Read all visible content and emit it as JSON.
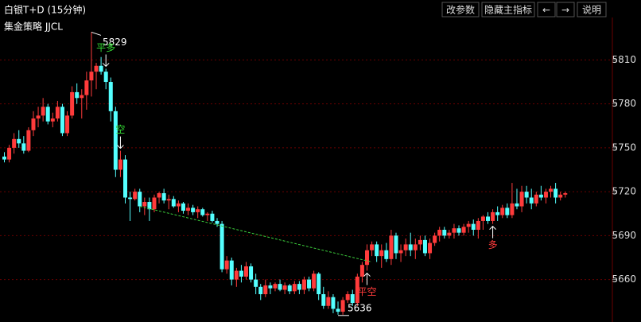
{
  "toolbar": {
    "title": "白银T+D (15分钟)",
    "buttons": [
      "改参数",
      "隐藏主指标",
      "←",
      "→",
      "说明"
    ]
  },
  "chart_data": {
    "type": "candlestick",
    "title": "集金策略 JJCL",
    "up_color": "#ff3b3b",
    "down_color": "#54ffff",
    "grid": true,
    "grid_color": "#6a0000",
    "ylim": [
      5631,
      5839
    ],
    "yticks": [
      5660,
      5690,
      5720,
      5750,
      5780,
      5810
    ],
    "ohlc": [
      [
        5744,
        5747,
        5740,
        5742
      ],
      [
        5742,
        5752,
        5740,
        5750
      ],
      [
        5750,
        5760,
        5746,
        5756
      ],
      [
        5756,
        5762,
        5750,
        5753
      ],
      [
        5753,
        5758,
        5746,
        5748
      ],
      [
        5748,
        5764,
        5747,
        5762
      ],
      [
        5762,
        5775,
        5758,
        5770
      ],
      [
        5770,
        5778,
        5764,
        5772
      ],
      [
        5772,
        5784,
        5768,
        5778
      ],
      [
        5778,
        5780,
        5766,
        5768
      ],
      [
        5768,
        5774,
        5764,
        5770
      ],
      [
        5770,
        5782,
        5768,
        5778
      ],
      [
        5778,
        5780,
        5758,
        5760
      ],
      [
        5760,
        5775,
        5758,
        5772
      ],
      [
        5772,
        5792,
        5770,
        5788
      ],
      [
        5788,
        5794,
        5780,
        5784
      ],
      [
        5784,
        5790,
        5770,
        5786
      ],
      [
        5786,
        5802,
        5776,
        5796
      ],
      [
        5796,
        5829,
        5785,
        5802
      ],
      [
        5802,
        5808,
        5790,
        5806
      ],
      [
        5806,
        5812,
        5800,
        5802
      ],
      [
        5802,
        5804,
        5790,
        5795
      ],
      [
        5795,
        5798,
        5768,
        5775
      ],
      [
        5775,
        5778,
        5730,
        5735
      ],
      [
        5735,
        5748,
        5730,
        5742
      ],
      [
        5742,
        5745,
        5712,
        5716
      ],
      [
        5716,
        5720,
        5700,
        5715
      ],
      [
        5715,
        5722,
        5714,
        5720
      ],
      [
        5720,
        5722,
        5706,
        5710
      ],
      [
        5710,
        5716,
        5704,
        5713
      ],
      [
        5713,
        5716,
        5700,
        5708
      ],
      [
        5708,
        5718,
        5706,
        5716
      ],
      [
        5716,
        5720,
        5712,
        5719
      ],
      [
        5719,
        5722,
        5712,
        5714
      ],
      [
        5714,
        5718,
        5708,
        5715
      ],
      [
        5715,
        5717,
        5709,
        5710
      ],
      [
        5710,
        5714,
        5706,
        5712
      ],
      [
        5712,
        5713,
        5705,
        5707
      ],
      [
        5707,
        5712,
        5704,
        5709
      ],
      [
        5709,
        5711,
        5704,
        5706
      ],
      [
        5706,
        5710,
        5702,
        5708
      ],
      [
        5708,
        5709,
        5703,
        5704
      ],
      [
        5704,
        5706,
        5700,
        5705
      ],
      [
        5705,
        5707,
        5699,
        5700
      ],
      [
        5700,
        5702,
        5696,
        5698
      ],
      [
        5698,
        5700,
        5665,
        5667
      ],
      [
        5667,
        5676,
        5664,
        5673
      ],
      [
        5673,
        5675,
        5656,
        5660
      ],
      [
        5660,
        5668,
        5655,
        5666
      ],
      [
        5666,
        5670,
        5658,
        5662
      ],
      [
        5662,
        5672,
        5660,
        5669
      ],
      [
        5669,
        5671,
        5658,
        5660
      ],
      [
        5660,
        5664,
        5650,
        5655
      ],
      [
        5655,
        5657,
        5646,
        5650
      ],
      [
        5650,
        5660,
        5648,
        5656
      ],
      [
        5656,
        5658,
        5650,
        5654
      ],
      [
        5654,
        5658,
        5652,
        5657
      ],
      [
        5657,
        5660,
        5652,
        5653
      ],
      [
        5653,
        5658,
        5650,
        5656
      ],
      [
        5656,
        5657,
        5650,
        5652
      ],
      [
        5652,
        5659,
        5650,
        5657
      ],
      [
        5657,
        5659,
        5650,
        5653
      ],
      [
        5653,
        5662,
        5650,
        5660
      ],
      [
        5660,
        5662,
        5652,
        5654
      ],
      [
        5654,
        5666,
        5652,
        5664
      ],
      [
        5664,
        5665,
        5646,
        5650
      ],
      [
        5650,
        5655,
        5640,
        5642
      ],
      [
        5642,
        5652,
        5640,
        5648
      ],
      [
        5648,
        5650,
        5637,
        5640
      ],
      [
        5640,
        5645,
        5636,
        5638
      ],
      [
        5638,
        5648,
        5636,
        5646
      ],
      [
        5646,
        5652,
        5644,
        5650
      ],
      [
        5650,
        5653,
        5642,
        5644
      ],
      [
        5644,
        5664,
        5642,
        5662
      ],
      [
        5662,
        5672,
        5658,
        5670
      ],
      [
        5670,
        5684,
        5666,
        5680
      ],
      [
        5680,
        5686,
        5676,
        5684
      ],
      [
        5684,
        5686,
        5672,
        5676
      ],
      [
        5676,
        5684,
        5668,
        5680
      ],
      [
        5680,
        5685,
        5672,
        5674
      ],
      [
        5674,
        5694,
        5670,
        5690
      ],
      [
        5690,
        5692,
        5674,
        5678
      ],
      [
        5678,
        5684,
        5672,
        5680
      ],
      [
        5680,
        5688,
        5676,
        5684
      ],
      [
        5684,
        5692,
        5676,
        5680
      ],
      [
        5680,
        5688,
        5674,
        5684
      ],
      [
        5684,
        5690,
        5680,
        5687
      ],
      [
        5687,
        5690,
        5676,
        5678
      ],
      [
        5678,
        5688,
        5674,
        5685
      ],
      [
        5685,
        5692,
        5683,
        5690
      ],
      [
        5690,
        5696,
        5686,
        5694
      ],
      [
        5694,
        5696,
        5688,
        5690
      ],
      [
        5690,
        5694,
        5688,
        5692
      ],
      [
        5692,
        5698,
        5688,
        5695
      ],
      [
        5695,
        5697,
        5690,
        5692
      ],
      [
        5692,
        5698,
        5690,
        5696
      ],
      [
        5696,
        5700,
        5692,
        5698
      ],
      [
        5698,
        5701,
        5690,
        5694
      ],
      [
        5694,
        5702,
        5688,
        5700
      ],
      [
        5700,
        5704,
        5694,
        5703
      ],
      [
        5703,
        5706,
        5698,
        5700
      ],
      [
        5700,
        5708,
        5698,
        5706
      ],
      [
        5706,
        5710,
        5700,
        5704
      ],
      [
        5704,
        5711,
        5702,
        5709
      ],
      [
        5709,
        5712,
        5702,
        5704
      ],
      [
        5704,
        5726,
        5702,
        5712
      ],
      [
        5712,
        5722,
        5708,
        5710
      ],
      [
        5710,
        5724,
        5706,
        5720
      ],
      [
        5720,
        5724,
        5712,
        5716
      ],
      [
        5716,
        5722,
        5708,
        5712
      ],
      [
        5712,
        5720,
        5710,
        5718
      ],
      [
        5718,
        5724,
        5714,
        5716
      ],
      [
        5716,
        5722,
        5712,
        5720
      ],
      [
        5720,
        5724,
        5716,
        5722
      ],
      [
        5722,
        5726,
        5712,
        5716
      ],
      [
        5716,
        5720,
        5714,
        5718
      ],
      [
        5718,
        5720,
        5716,
        5719
      ]
    ],
    "max_label": {
      "value": 5829,
      "at": 18
    },
    "min_label": {
      "value": 5636,
      "at": 69
    },
    "signals": [
      {
        "text": "平多",
        "at": 21,
        "side": "above",
        "color": "#33dd33"
      },
      {
        "text": "空",
        "at": 24,
        "side": "above",
        "color": "#33dd33"
      },
      {
        "text": "平空",
        "at": 75,
        "side": "below",
        "color": "#ff3b3b"
      },
      {
        "text": "多",
        "at": 101,
        "side": "below",
        "color": "#ff3b3b"
      }
    ],
    "trend_line": {
      "color": "#3ccf3c",
      "points": [
        [
          28,
          5710
        ],
        [
          76,
          5672
        ]
      ]
    }
  }
}
